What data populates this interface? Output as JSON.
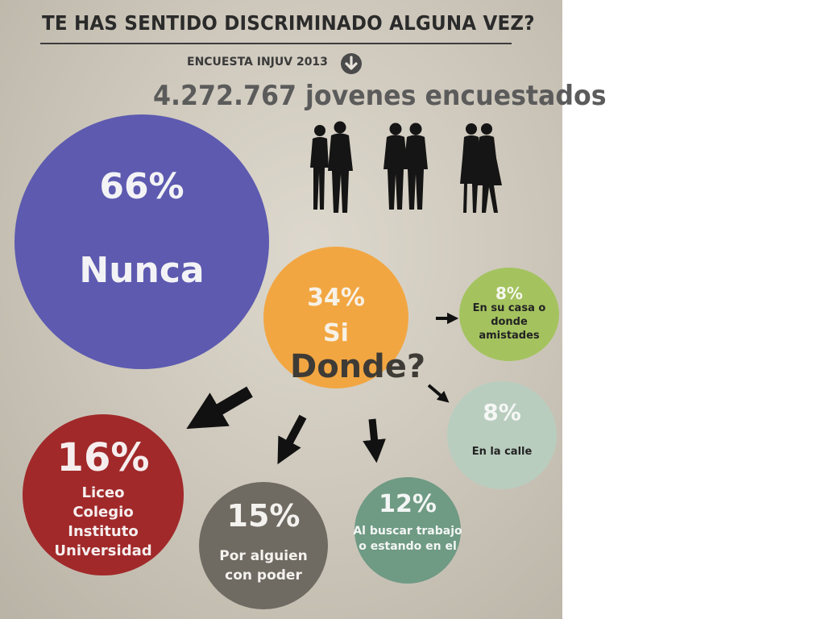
{
  "title": "TE HAS SENTIDO DISCRIMINADO ALGUNA VEZ?",
  "survey_label": "ENCUESTA INJUV 2013",
  "respondents": "4.272.767 jovenes encuestados",
  "question": "Donde?",
  "icons": [
    "down-arrow-icon",
    "couple-silhouette-icon",
    "two-men-silhouette-icon",
    "two-women-silhouette-icon",
    "arrow-icon"
  ],
  "colors": {
    "nunca": "#5d5ab0",
    "si": "#f2a641",
    "casa": "#a4c35f",
    "calle": "#b9cdbf",
    "trabajo": "#6f9a84",
    "poder": "#6f6a62",
    "liceo": "#a1292a"
  },
  "segments": {
    "nunca": {
      "pct": "66%",
      "label": "Nunca"
    },
    "si": {
      "pct": "34%",
      "label": "Si"
    },
    "casa": {
      "pct": "8%",
      "line1": "En su casa o",
      "line2": "donde amistades"
    },
    "calle": {
      "pct": "8%",
      "label": "En la calle"
    },
    "trabajo": {
      "pct": "12%",
      "line1": "Al buscar trabajo",
      "line2": "o estando en el"
    },
    "poder": {
      "pct": "15%",
      "line1": "Por alguien",
      "line2": "con poder"
    },
    "liceo": {
      "pct": "16%",
      "lines": [
        "Liceo",
        "Colegio",
        "Instituto",
        "Universidad"
      ]
    }
  }
}
